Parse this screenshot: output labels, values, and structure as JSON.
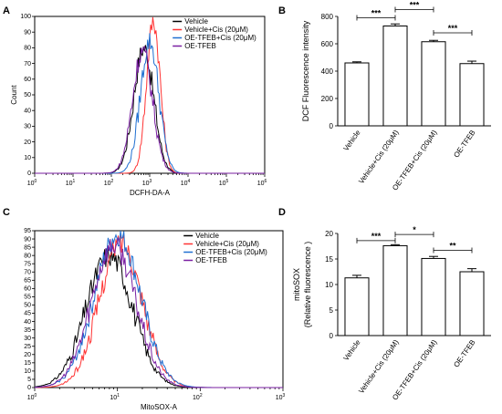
{
  "chart_data": [
    {
      "panel": "A",
      "type": "line",
      "xlabel": "DCFH-DA-A",
      "ylabel": "Count",
      "x_scale": "log",
      "xlim": [
        1,
        1000000
      ],
      "x_tick_labels": [
        "10",
        "10",
        "10",
        "10",
        "10",
        "10",
        "10"
      ],
      "x_tick_exponents": [
        "0",
        "1",
        "2",
        "3",
        "4",
        "5",
        "6"
      ],
      "ylim": [
        0,
        100
      ],
      "y_ticks": [
        0,
        10,
        20,
        30,
        40,
        50,
        60,
        70,
        80,
        90,
        100
      ],
      "legend": {
        "placement": "top-right"
      },
      "series": [
        {
          "name": "Vehicle",
          "color": "#000000",
          "peak_x": 700,
          "peak_y": 80,
          "spread": 0.26
        },
        {
          "name": "Vehicle+Cis (20μM)",
          "color": "#ff3333",
          "peak_x": 1250,
          "peak_y": 97,
          "spread": 0.18
        },
        {
          "name": "OE-TFEB+Cis (20μM)",
          "color": "#1f6fd1",
          "peak_x": 1000,
          "peak_y": 84,
          "spread": 0.24
        },
        {
          "name": "OE-TFEB",
          "color": "#7a1fa2",
          "peak_x": 650,
          "peak_y": 78,
          "spread": 0.26
        }
      ]
    },
    {
      "panel": "B",
      "type": "bar",
      "ylabel": "DCF Fluorescence intensity",
      "ylim": [
        0,
        800
      ],
      "y_ticks": [
        0,
        200,
        400,
        600,
        800
      ],
      "categories": [
        "Vehicle",
        "Vehicle+Cis (20μM)",
        "OE-TFEB+Cis (20μM)",
        "OE-TFEB"
      ],
      "values": [
        460,
        730,
        615,
        455
      ],
      "errors": [
        8,
        15,
        10,
        18
      ],
      "significance": [
        {
          "from": 0,
          "to": 1,
          "label": "***",
          "y": 790
        },
        {
          "from": 1,
          "to": 2,
          "label": "***",
          "y": 850
        },
        {
          "from": 2,
          "to": 3,
          "label": "***",
          "y": 680
        }
      ]
    },
    {
      "panel": "C",
      "type": "line",
      "xlabel": "MitoSOX-A",
      "ylabel": "",
      "x_scale": "log",
      "xlim": [
        1,
        1000
      ],
      "x_tick_labels": [
        "10",
        "10",
        "10",
        "10"
      ],
      "x_tick_exponents": [
        "0",
        "1",
        "2",
        "3"
      ],
      "ylim": [
        0,
        95
      ],
      "y_ticks": [
        0,
        5,
        10,
        15,
        20,
        25,
        30,
        35,
        40,
        45,
        50,
        55,
        60,
        65,
        70,
        75,
        80,
        85,
        90,
        95
      ],
      "legend": {
        "placement": "top-right"
      },
      "series": [
        {
          "name": "Vehicle",
          "color": "#000000",
          "peak_x": 8,
          "peak_y": 80,
          "spread": 0.28
        },
        {
          "name": "Vehicle+Cis (20μM)",
          "color": "#ff3333",
          "peak_x": 11,
          "peak_y": 88,
          "spread": 0.26
        },
        {
          "name": "OE-TFEB+Cis (20μM)",
          "color": "#1f6fd1",
          "peak_x": 10,
          "peak_y": 92,
          "spread": 0.28
        },
        {
          "name": "OE-TFEB",
          "color": "#7a1fa2",
          "peak_x": 9,
          "peak_y": 86,
          "spread": 0.27
        }
      ]
    },
    {
      "panel": "D",
      "type": "bar",
      "ylabel": "mitoSOX",
      "ylabel2": "(Relative fluorescence )",
      "ylim": [
        0,
        20
      ],
      "y_ticks": [
        0,
        5,
        10,
        15,
        20
      ],
      "categories": [
        "Vehicle",
        "Vehicle+Cis (20μM)",
        "OE-TFEB+Cis (20μM)",
        "OE-TFEB"
      ],
      "values": [
        11.3,
        17.6,
        15.1,
        12.5
      ],
      "errors": [
        0.5,
        0.2,
        0.4,
        0.6
      ],
      "significance": [
        {
          "from": 0,
          "to": 1,
          "label": "***",
          "y": 18.6
        },
        {
          "from": 1,
          "to": 2,
          "label": "*",
          "y": 19.8
        },
        {
          "from": 2,
          "to": 3,
          "label": "**",
          "y": 16.7
        }
      ]
    }
  ]
}
